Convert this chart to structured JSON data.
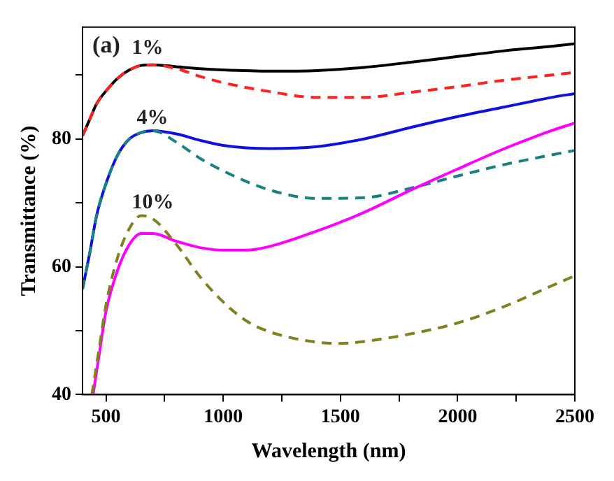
{
  "chart_data": {
    "type": "line",
    "xlabel": "Wavelength (nm)",
    "ylabel": "Transmittance (%)",
    "xlim": [
      400,
      2500
    ],
    "ylim": [
      40,
      97.5
    ],
    "xticks": [
      500,
      {
        "value": 750,
        "label": null
      },
      1000,
      {
        "value": 1250,
        "label": null
      },
      1500,
      {
        "value": 1750,
        "label": null
      },
      2000,
      {
        "value": 2250,
        "label": null
      },
      2500
    ],
    "yticks": [
      40,
      {
        "value": 50,
        "label": null
      },
      60,
      {
        "value": 70,
        "label": null
      },
      80,
      {
        "value": 90,
        "label": null
      }
    ],
    "grid": false,
    "legend": false,
    "marker": "none",
    "annotations": [
      "(a)",
      "1%",
      "4%",
      "10%"
    ],
    "series": [
      {
        "color": "#000000",
        "line_style": "solid",
        "x": [
          400,
          430,
          460,
          500,
          550,
          600,
          650,
          700,
          800,
          900,
          1000,
          1200,
          1400,
          1600,
          1800,
          2000,
          2200,
          2400,
          2500
        ],
        "values": [
          80.5,
          83,
          85.5,
          87.5,
          89.5,
          90.8,
          91.5,
          91.6,
          91.3,
          91,
          90.8,
          90.6,
          90.7,
          91.2,
          92,
          92.9,
          93.8,
          94.5,
          94.9
        ]
      },
      {
        "color": "#ff2020",
        "line_style": "dashed",
        "x": [
          400,
          430,
          460,
          500,
          550,
          600,
          650,
          700,
          800,
          900,
          1000,
          1200,
          1400,
          1600,
          1800,
          2000,
          2200,
          2400,
          2500
        ],
        "values": [
          80.5,
          83,
          85.5,
          87.5,
          89.5,
          90.8,
          91.5,
          91.6,
          91,
          89.8,
          88.8,
          87.4,
          86.5,
          86.5,
          87.3,
          88.2,
          89.2,
          90,
          90.4
        ]
      },
      {
        "color": "#1010e0",
        "line_style": "solid",
        "x": [
          400,
          430,
          460,
          500,
          550,
          600,
          650,
          700,
          800,
          900,
          1000,
          1200,
          1400,
          1600,
          1800,
          2000,
          2200,
          2400,
          2500
        ],
        "values": [
          56.5,
          62,
          68,
          73,
          77.5,
          80,
          81,
          81.3,
          80.8,
          79.8,
          79,
          78.5,
          78.8,
          80,
          81.8,
          83.5,
          85,
          86.5,
          87.1
        ]
      },
      {
        "color": "#1a8080",
        "line_style": "dashed",
        "x": [
          400,
          430,
          460,
          500,
          550,
          600,
          650,
          700,
          800,
          900,
          1000,
          1200,
          1400,
          1600,
          1800,
          2000,
          2200,
          2400,
          2500
        ],
        "values": [
          56.5,
          62,
          68,
          73,
          77.5,
          80,
          81,
          81.3,
          79.5,
          77,
          75,
          72,
          70.7,
          70.8,
          72.3,
          74.2,
          76,
          77.5,
          78.2
        ]
      },
      {
        "color": "#ff00ff",
        "line_style": "solid",
        "x": [
          445,
          470,
          500,
          550,
          600,
          650,
          700,
          800,
          900,
          1000,
          1100,
          1200,
          1400,
          1600,
          1800,
          2000,
          2200,
          2400,
          2500
        ],
        "values": [
          40,
          46,
          53,
          59.5,
          63.5,
          65.2,
          65.2,
          64,
          63,
          62.6,
          62.6,
          63.2,
          65.6,
          68.5,
          72,
          75.3,
          78.5,
          81.3,
          82.5
        ]
      },
      {
        "color": "#808020",
        "line_style": "dashed",
        "x": [
          440,
          470,
          500,
          550,
          600,
          650,
          700,
          800,
          900,
          1000,
          1100,
          1200,
          1400,
          1500,
          1600,
          1800,
          2000,
          2200,
          2400,
          2500
        ],
        "values": [
          40,
          47,
          54,
          61.5,
          66,
          68,
          67.5,
          63.5,
          58.5,
          54.5,
          51.5,
          49.8,
          48.2,
          48,
          48.3,
          49.5,
          51.2,
          53.8,
          57,
          58.6
        ]
      }
    ]
  }
}
